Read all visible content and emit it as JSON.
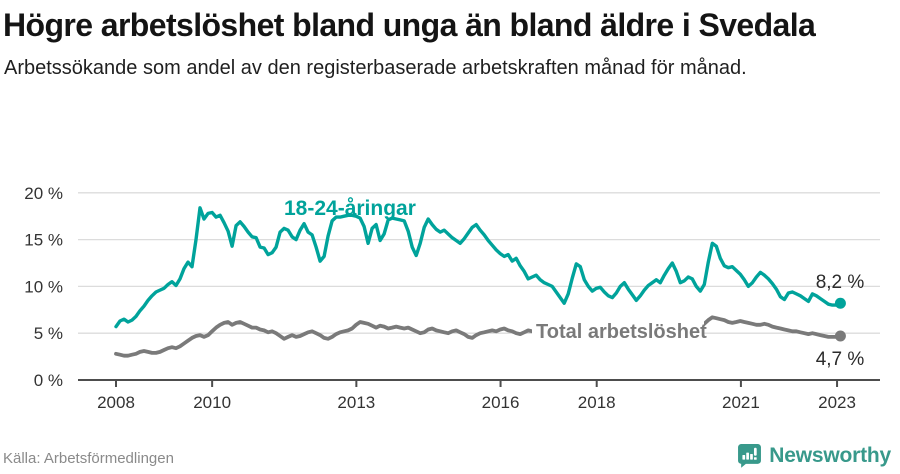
{
  "header": {
    "title": "Högre arbetslöshet bland unga än bland äldre i Svedala",
    "subtitle": "Arbetssökande som andel av den registerbaserade arbetskraften månad för månad."
  },
  "footer": {
    "source": "Källa: Arbetsförmedlingen",
    "brand": "Newsworthy"
  },
  "colors": {
    "young_line": "#00a39b",
    "total_line": "#7a7a7a",
    "gridline": "#dcdcdc",
    "axis": "#4d4d4d",
    "tick_label": "#333333",
    "end_label": "#2b2b2b",
    "brand_teal": "#38998b"
  },
  "chart_data": {
    "type": "line",
    "title": "Högre arbetslöshet bland unga än bland äldre i Svedala",
    "subtitle": "Arbetssökande som andel av den registerbaserade arbetskraften månad för månad.",
    "x_unit": "month",
    "x_start": "2008-01",
    "x_end": "2023-02",
    "frequency": "monthly",
    "ylim": [
      0,
      20
    ],
    "grid": "horizontal",
    "y_ticks": [
      0,
      5,
      10,
      15,
      20
    ],
    "y_tick_labels": [
      "0 %",
      "5 %",
      "10 %",
      "15 %",
      "20 %"
    ],
    "x_tick_years": [
      2008,
      2010,
      2013,
      2016,
      2018,
      2021,
      2023
    ],
    "x_tick_labels": [
      "2008",
      "2010",
      "2013",
      "2016",
      "2018",
      "2021",
      "2023"
    ],
    "series": [
      {
        "name": "18-24-åringar",
        "color": "#00a39b",
        "end_label": "8,2 %",
        "end_value": 8.2,
        "values": [
          5.7,
          6.3,
          6.5,
          6.2,
          6.4,
          6.8,
          7.4,
          7.9,
          8.5,
          9.0,
          9.4,
          9.6,
          9.8,
          10.2,
          10.5,
          10.1,
          10.8,
          11.9,
          12.6,
          12.1,
          15.0,
          18.4,
          17.2,
          17.8,
          17.9,
          17.4,
          17.6,
          16.8,
          15.9,
          14.3,
          16.5,
          16.9,
          16.4,
          15.8,
          15.3,
          15.2,
          14.2,
          14.1,
          13.4,
          13.6,
          14.2,
          15.8,
          16.2,
          16.0,
          15.3,
          15.0,
          16.0,
          16.7,
          15.8,
          15.5,
          14.2,
          12.7,
          13.2,
          15.4,
          17.0,
          17.4,
          17.4,
          17.5,
          17.6,
          17.6,
          17.5,
          17.3,
          16.4,
          14.6,
          16.2,
          16.6,
          14.9,
          15.6,
          17.1,
          17.3,
          17.2,
          17.1,
          17.0,
          15.9,
          14.2,
          13.3,
          14.6,
          16.3,
          17.2,
          16.6,
          16.1,
          15.8,
          16.0,
          15.6,
          15.2,
          14.9,
          14.6,
          15.1,
          15.7,
          16.3,
          16.6,
          16.0,
          15.5,
          14.9,
          14.4,
          13.9,
          13.5,
          13.2,
          13.4,
          12.7,
          13.0,
          12.2,
          11.6,
          10.8,
          11.0,
          11.2,
          10.7,
          10.4,
          10.2,
          10.0,
          9.4,
          8.8,
          8.2,
          9.2,
          10.9,
          12.4,
          12.1,
          10.7,
          10.0,
          9.5,
          9.8,
          9.9,
          9.4,
          9.0,
          8.8,
          9.3,
          10.0,
          10.4,
          9.7,
          9.1,
          8.5,
          9.0,
          9.6,
          10.1,
          10.4,
          10.7,
          10.4,
          11.2,
          11.9,
          12.5,
          11.6,
          10.4,
          10.6,
          11.0,
          10.8,
          10.0,
          9.5,
          10.2,
          12.6,
          14.6,
          14.3,
          13.0,
          12.2,
          12.0,
          12.1,
          11.7,
          11.3,
          10.7,
          10.0,
          10.4,
          11.0,
          11.5,
          11.2,
          10.8,
          10.3,
          9.7,
          8.9,
          8.6,
          9.3,
          9.4,
          9.2,
          9.0,
          8.7,
          8.4,
          9.2,
          9.0,
          8.7,
          8.4,
          8.1,
          8.0,
          8.0,
          8.2
        ]
      },
      {
        "name": "Total arbetslöshet",
        "color": "#7a7a7a",
        "end_label": "4,7 %",
        "end_value": 4.7,
        "values": [
          2.8,
          2.7,
          2.6,
          2.6,
          2.7,
          2.8,
          3.0,
          3.1,
          3.0,
          2.9,
          2.9,
          3.0,
          3.2,
          3.4,
          3.5,
          3.4,
          3.6,
          3.9,
          4.2,
          4.5,
          4.7,
          4.8,
          4.6,
          4.8,
          5.2,
          5.6,
          5.9,
          6.1,
          6.2,
          5.9,
          6.1,
          6.2,
          6.0,
          5.8,
          5.6,
          5.6,
          5.4,
          5.3,
          5.1,
          5.2,
          5.0,
          4.7,
          4.4,
          4.6,
          4.8,
          4.6,
          4.7,
          4.9,
          5.1,
          5.2,
          5.0,
          4.8,
          4.5,
          4.4,
          4.6,
          4.9,
          5.1,
          5.2,
          5.3,
          5.5,
          5.9,
          6.2,
          6.1,
          6.0,
          5.8,
          5.6,
          5.8,
          5.7,
          5.5,
          5.6,
          5.7,
          5.6,
          5.5,
          5.6,
          5.4,
          5.2,
          5.0,
          5.1,
          5.4,
          5.5,
          5.3,
          5.2,
          5.1,
          5.0,
          5.2,
          5.3,
          5.1,
          4.9,
          4.6,
          4.5,
          4.8,
          5.0,
          5.1,
          5.2,
          5.3,
          5.2,
          5.4,
          5.5,
          5.3,
          5.2,
          5.0,
          4.9,
          5.1,
          5.3,
          5.2,
          5.1,
          5.0,
          5.0,
          5.1,
          5.2,
          5.1,
          5.0,
          4.9,
          4.8,
          4.9,
          5.0,
          4.9,
          4.8,
          4.8,
          4.9,
          4.9,
          4.8,
          4.7,
          4.6,
          4.5,
          4.5,
          4.6,
          4.7,
          4.6,
          4.5,
          4.5,
          4.6,
          4.7,
          4.8,
          4.8,
          4.9,
          5.0,
          5.1,
          5.3,
          5.4,
          5.3,
          5.2,
          5.3,
          5.4,
          5.5,
          5.5,
          5.6,
          6.0,
          6.4,
          6.7,
          6.6,
          6.5,
          6.4,
          6.2,
          6.1,
          6.2,
          6.3,
          6.2,
          6.1,
          6.0,
          5.9,
          5.9,
          6.0,
          5.9,
          5.7,
          5.6,
          5.5,
          5.4,
          5.3,
          5.2,
          5.2,
          5.1,
          5.0,
          4.9,
          5.0,
          4.9,
          4.8,
          4.7,
          4.6,
          4.6,
          4.6,
          4.7
        ]
      }
    ],
    "legend_position": "inline-labels"
  }
}
